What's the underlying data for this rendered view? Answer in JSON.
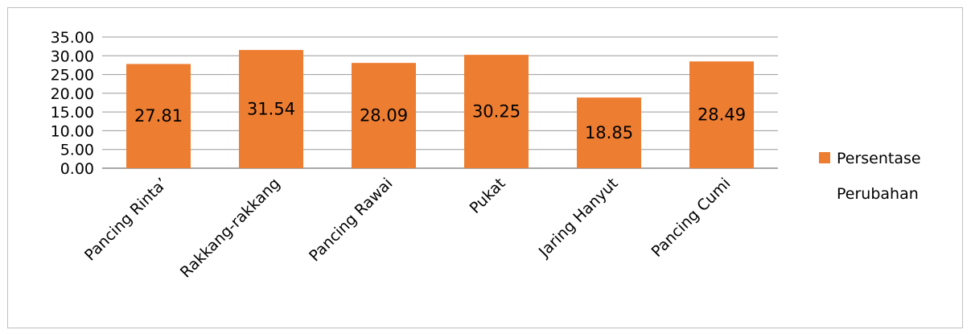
{
  "chart_data": {
    "type": "bar",
    "categories": [
      "Pancing Rinta’",
      "Rakkang-rakkang",
      "Pancing Rawai",
      "Pukat",
      "Jaring Hanyut",
      "Pancing Cumi"
    ],
    "series": [
      {
        "name": "Persentase Perubahan",
        "values": [
          27.81,
          31.54,
          28.09,
          30.25,
          18.85,
          28.49
        ],
        "color": "#ED7D31"
      }
    ],
    "data_labels": [
      "27.81",
      "31.54",
      "28.09",
      "30.25",
      "18.85",
      "28.49"
    ],
    "yticks": [
      "0.00",
      "5.00",
      "10.00",
      "15.00",
      "20.00",
      "25.00",
      "30.00",
      "35.00"
    ],
    "ylim": [
      0,
      35
    ],
    "grid": true,
    "legend": {
      "position": "right",
      "lines": [
        "Persentase",
        "Perubahan"
      ]
    },
    "title": "",
    "xlabel": "",
    "ylabel": ""
  }
}
